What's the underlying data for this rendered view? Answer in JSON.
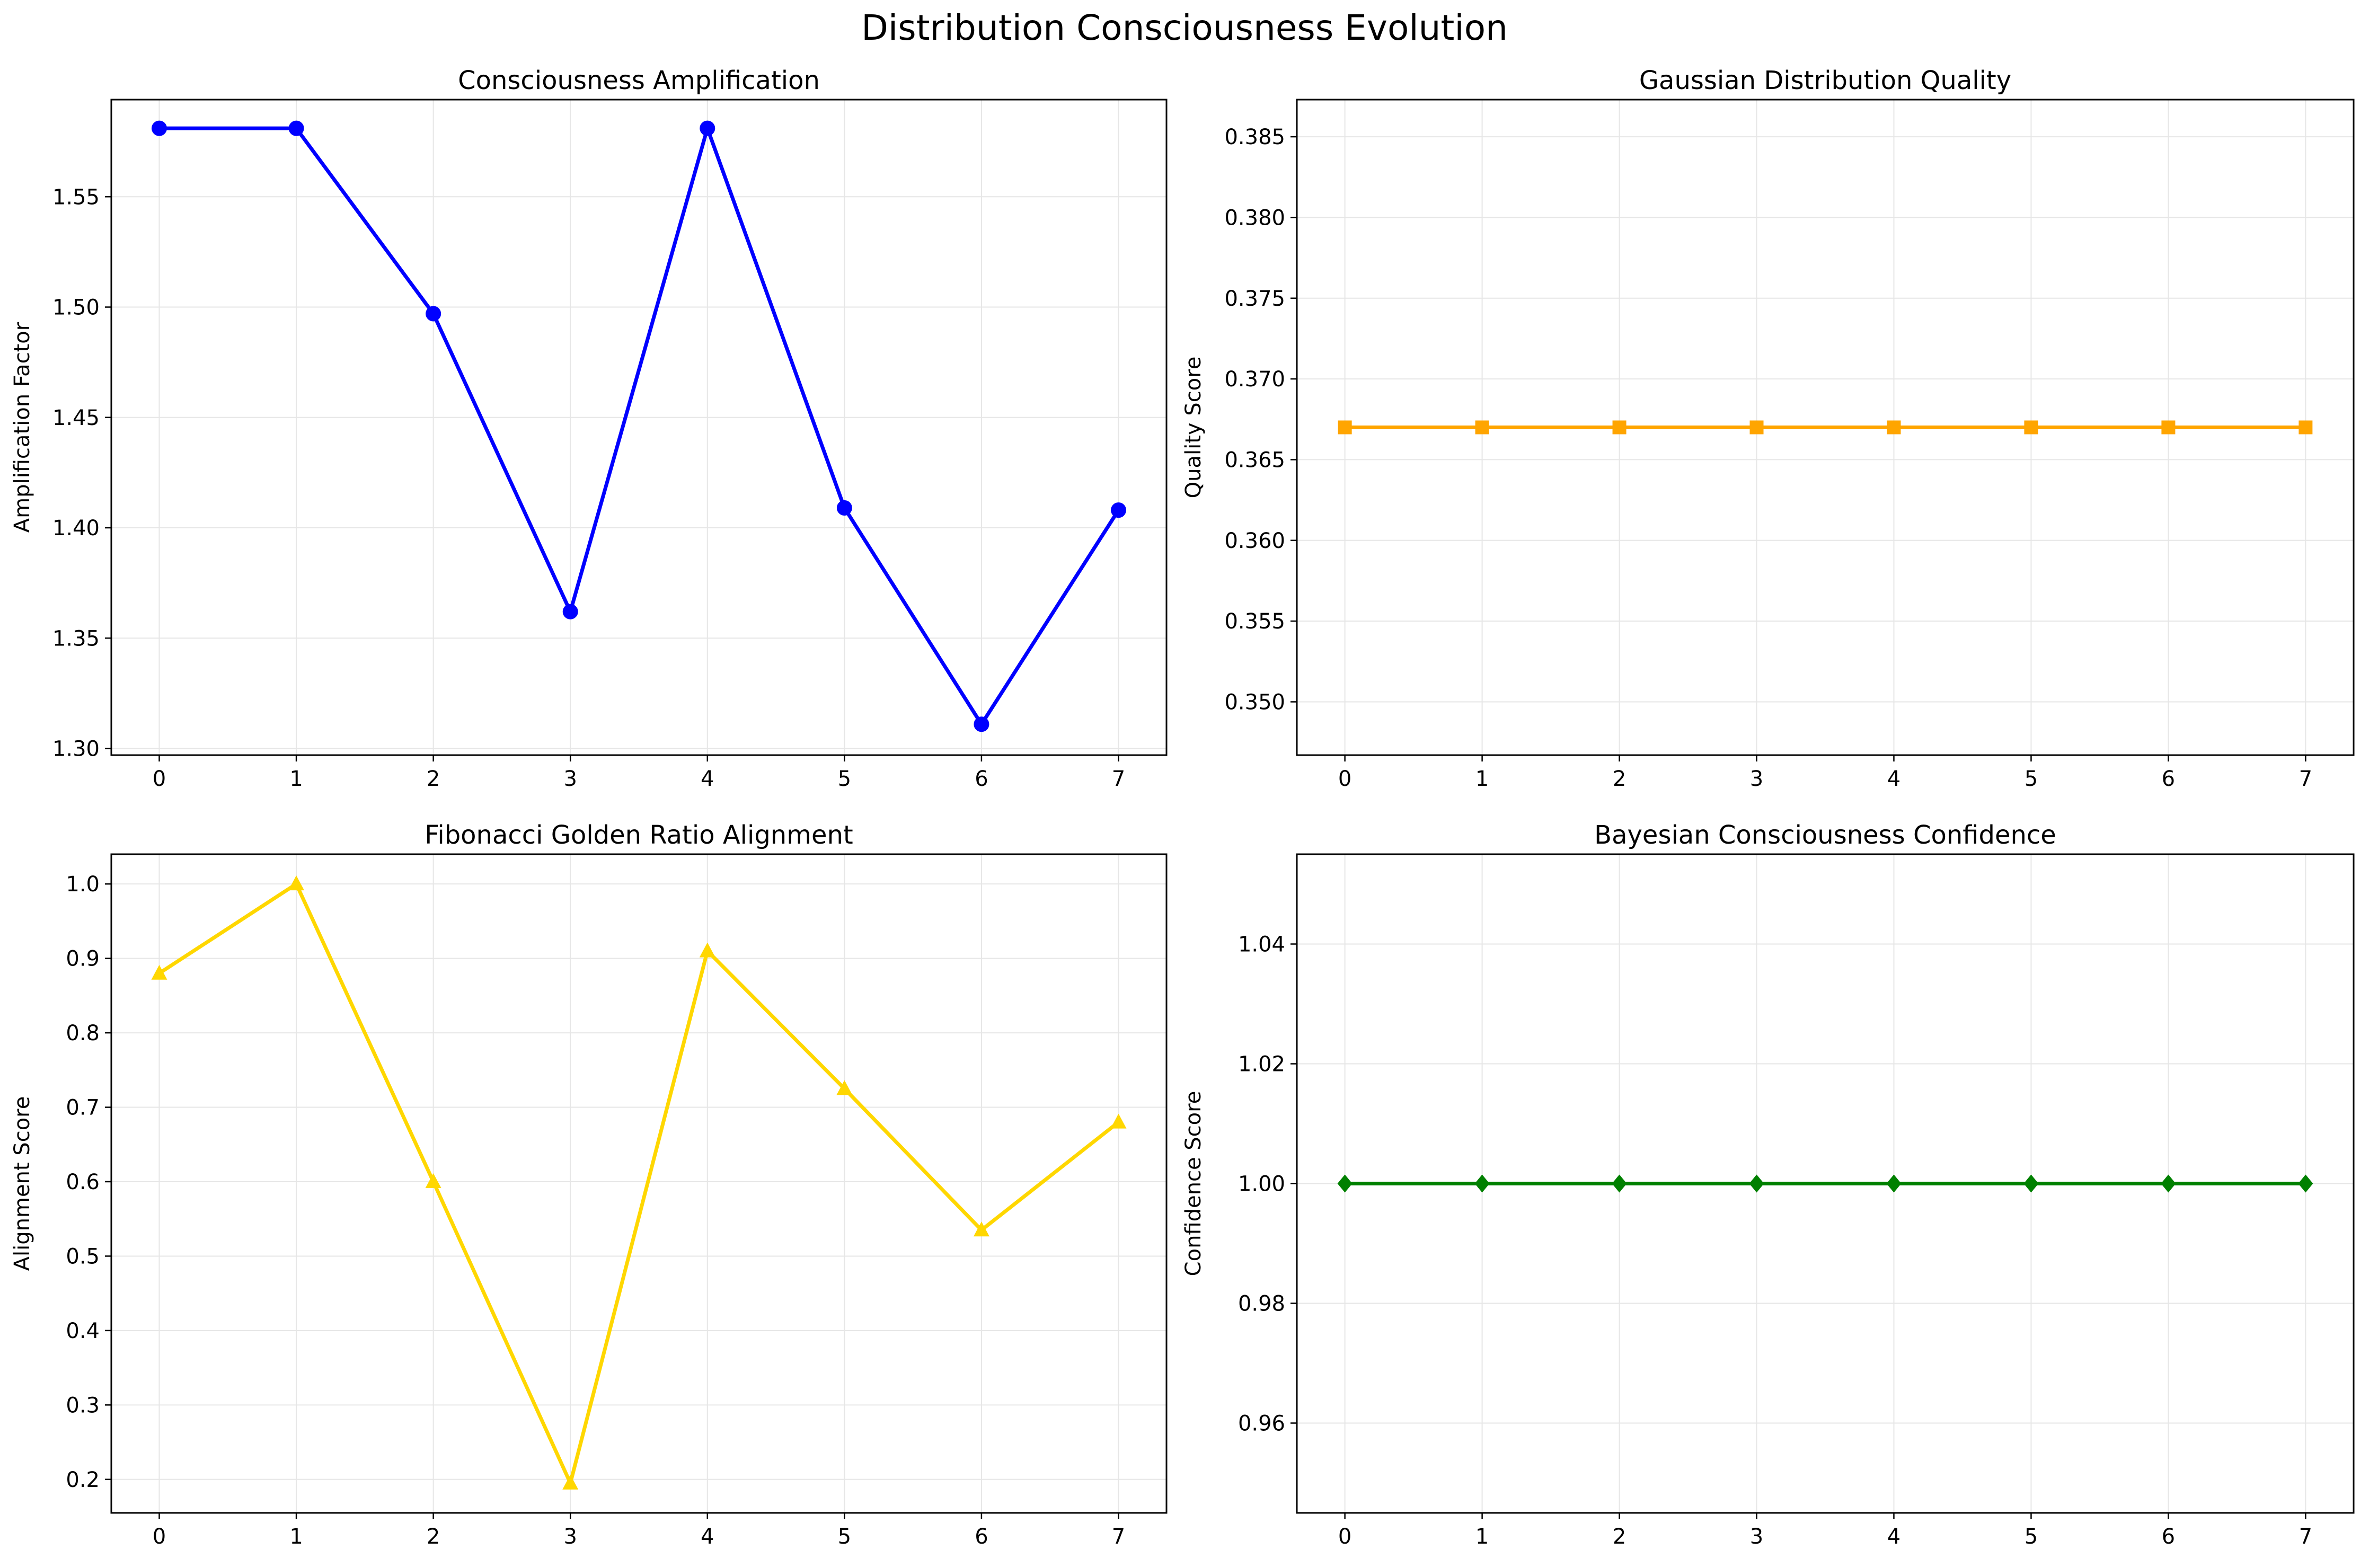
{
  "figure": {
    "title": "Distribution Consciousness Evolution"
  },
  "chart_data": [
    {
      "type": "line",
      "title": "Consciousness Amplification",
      "xlabel": "",
      "ylabel": "Amplification Factor",
      "x": [
        0,
        1,
        2,
        3,
        4,
        5,
        6,
        7
      ],
      "xticks": [
        "0",
        "1",
        "2",
        "3",
        "4",
        "5",
        "6",
        "7"
      ],
      "xlim": [
        -0.35,
        7.35
      ],
      "ylim": [
        1.297,
        1.594
      ],
      "yticks": [
        "1.30",
        "1.35",
        "1.40",
        "1.45",
        "1.50",
        "1.55"
      ],
      "grid": true,
      "series": [
        {
          "values": [
            1.581,
            1.581,
            1.497,
            1.362,
            1.581,
            1.409,
            1.311,
            1.408
          ],
          "color": "#0000ff",
          "marker": "circle"
        }
      ]
    },
    {
      "type": "line",
      "title": "Gaussian Distribution Quality",
      "xlabel": "",
      "ylabel": "Quality Score",
      "x": [
        0,
        1,
        2,
        3,
        4,
        5,
        6,
        7
      ],
      "xticks": [
        "0",
        "1",
        "2",
        "3",
        "4",
        "5",
        "6",
        "7"
      ],
      "xlim": [
        -0.35,
        7.35
      ],
      "ylim": [
        0.3467,
        0.3873
      ],
      "yticks": [
        "0.350",
        "0.355",
        "0.360",
        "0.365",
        "0.370",
        "0.375",
        "0.380",
        "0.385"
      ],
      "grid": true,
      "series": [
        {
          "values": [
            0.367,
            0.367,
            0.367,
            0.367,
            0.367,
            0.367,
            0.367,
            0.367
          ],
          "color": "#ffa500",
          "marker": "square"
        }
      ]
    },
    {
      "type": "line",
      "title": "Fibonacci Golden Ratio Alignment",
      "xlabel": "",
      "ylabel": "Alignment Score",
      "x": [
        0,
        1,
        2,
        3,
        4,
        5,
        6,
        7
      ],
      "xticks": [
        "0",
        "1",
        "2",
        "3",
        "4",
        "5",
        "6",
        "7"
      ],
      "xlim": [
        -0.35,
        7.35
      ],
      "ylim": [
        0.155,
        1.04
      ],
      "yticks": [
        "0.2",
        "0.3",
        "0.4",
        "0.5",
        "0.6",
        "0.7",
        "0.8",
        "0.9",
        "1.0"
      ],
      "grid": true,
      "series": [
        {
          "values": [
            0.88,
            1.0,
            0.6,
            0.195,
            0.91,
            0.725,
            0.535,
            0.68
          ],
          "color": "#ffd700",
          "marker": "triangle"
        }
      ]
    },
    {
      "type": "line",
      "title": "Bayesian Consciousness Confidence",
      "xlabel": "",
      "ylabel": "Confidence Score",
      "x": [
        0,
        1,
        2,
        3,
        4,
        5,
        6,
        7
      ],
      "xticks": [
        "0",
        "1",
        "2",
        "3",
        "4",
        "5",
        "6",
        "7"
      ],
      "xlim": [
        -0.35,
        7.35
      ],
      "ylim": [
        0.945,
        1.055
      ],
      "yticks": [
        "0.96",
        "0.98",
        "1.00",
        "1.02",
        "1.04"
      ],
      "grid": true,
      "series": [
        {
          "values": [
            1.0,
            1.0,
            1.0,
            1.0,
            1.0,
            1.0,
            1.0,
            1.0
          ],
          "color": "#008000",
          "marker": "diamond"
        }
      ]
    }
  ]
}
